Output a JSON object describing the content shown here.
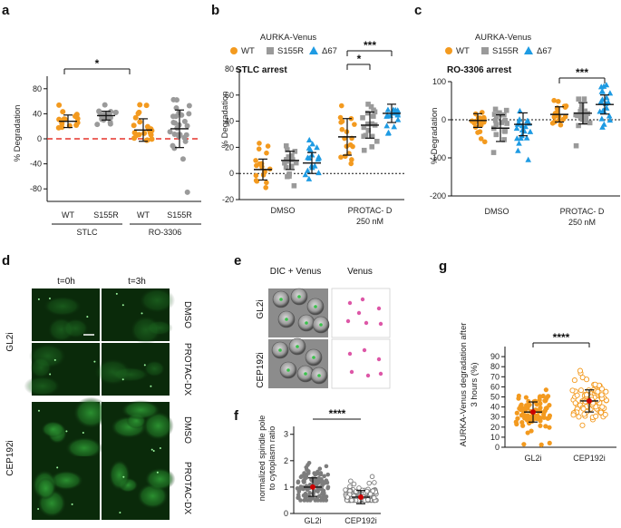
{
  "colors": {
    "wt": "#f39a1f",
    "s155r": "#9a9a9a",
    "d67": "#1e9be3",
    "gl2i_dot": "#f39a1f",
    "cep192i_ring": "#f39a1f",
    "grey_dot": "#7d7d7d",
    "red_dash": "#e5332a",
    "mean_red": "#cc0000",
    "micro_bg": "#0a2a0a",
    "micro_green": "#39c24a",
    "venus_pink": "#d21f8a"
  },
  "panels": {
    "a": {
      "label": "a",
      "ylabel": "% Degradation",
      "sig": "*",
      "groups": [
        "STLC",
        "RO-3306"
      ],
      "xticks": [
        "WT",
        "S155R",
        "WT",
        "S155R"
      ]
    },
    "b": {
      "label": "b",
      "legend_title": "AURKA-Venus",
      "legend": [
        "WT",
        "S155R",
        "Δ67"
      ],
      "title": "STLC arrest",
      "ylabel": "% Degradation",
      "sig1": "***",
      "sig2": "*",
      "xcat1": "DMSO",
      "xcat2_line1": "PROTAC- D",
      "xcat2_line2": "250 nM"
    },
    "c": {
      "label": "c",
      "legend_title": "AURKA-Venus",
      "legend": [
        "WT",
        "S155R",
        "Δ67"
      ],
      "title": "RO-3306 arrest",
      "ylabel": "% Degradation",
      "sig": "***",
      "xcat1": "DMSO",
      "xcat2_line1": "PROTAC- D",
      "xcat2_line2": "250 nM"
    },
    "d": {
      "label": "d",
      "col_labels": [
        "t=0h",
        "t=3h"
      ],
      "row_groups": [
        "GL2i",
        "CEP192i"
      ],
      "row_labels": [
        "DMSO",
        "PROTAC-DX",
        "DMSO",
        "PROTAC-DX"
      ]
    },
    "e": {
      "label": "e",
      "col_labels": [
        "DIC + Venus",
        "Venus"
      ],
      "row_labels": [
        "GL2i",
        "CEP192i"
      ]
    },
    "f": {
      "label": "f",
      "ylabel_line1": "normalized spindle pole",
      "ylabel_line2": "to cytoplasm ratio",
      "sig": "****",
      "xticks": [
        "GL2i",
        "CEP192i"
      ]
    },
    "g": {
      "label": "g",
      "ylabel_line1": "AURKA-Venus degradation after",
      "ylabel_line2": "3 hours (%)",
      "sig": "****",
      "xticks": [
        "GL2i",
        "CEP192i"
      ]
    }
  },
  "chart_data": [
    {
      "id": "a",
      "type": "scatter",
      "ylabel": "% Degradation",
      "ylim": [
        -100,
        100
      ],
      "yticks": [
        -80,
        -40,
        0,
        40,
        80
      ],
      "categories": [
        "STLC WT",
        "STLC S155R",
        "RO-3306 WT",
        "RO-3306 S155R"
      ],
      "series": [
        {
          "name": "STLC WT",
          "mean": 28,
          "sd": 10,
          "n": 14
        },
        {
          "name": "STLC S155R",
          "mean": 37,
          "sd": 7,
          "n": 20
        },
        {
          "name": "RO-3306 WT",
          "mean": 14,
          "sd": 18,
          "n": 22
        },
        {
          "name": "RO-3306 S155R",
          "mean": 16,
          "sd": 30,
          "n": 28
        }
      ],
      "reference_line": 0,
      "significance": [
        {
          "between": [
            "STLC WT",
            "STLC S155R"
          ],
          "label": "*"
        }
      ]
    },
    {
      "id": "b",
      "type": "scatter",
      "ylabel": "% Degradation",
      "ylim": [
        -20,
        80
      ],
      "yticks": [
        -20,
        0,
        20,
        40,
        60,
        80
      ],
      "title": "STLC arrest",
      "categories": [
        "DMSO",
        "PROTAC- D 250 nM"
      ],
      "series": [
        {
          "name": "WT",
          "values_mean": [
            3,
            28
          ],
          "values_sd": [
            8,
            14
          ]
        },
        {
          "name": "S155R",
          "values_mean": [
            10,
            37
          ],
          "values_sd": [
            7,
            10
          ]
        },
        {
          "name": "Δ67",
          "values_mean": [
            8,
            46
          ],
          "values_sd": [
            8,
            7
          ]
        }
      ],
      "reference_line": 0
    },
    {
      "id": "c",
      "type": "scatter",
      "ylabel": "% Degradation",
      "ylim": [
        -200,
        100
      ],
      "yticks": [
        -200,
        -100,
        0,
        100
      ],
      "title": "RO-3306 arrest",
      "categories": [
        "DMSO",
        "PROTAC- D 250 nM"
      ],
      "series": [
        {
          "name": "WT",
          "values_mean": [
            -2,
            14
          ],
          "values_sd": [
            18,
            20
          ]
        },
        {
          "name": "S155R",
          "values_mean": [
            -22,
            17
          ],
          "values_sd": [
            35,
            28
          ]
        },
        {
          "name": "Δ67",
          "values_mean": [
            -12,
            40
          ],
          "values_sd": [
            30,
            25
          ]
        }
      ],
      "reference_line": 0
    },
    {
      "id": "f",
      "type": "scatter",
      "ylim": [
        0,
        3.3
      ],
      "yticks": [
        0,
        1,
        2,
        3
      ],
      "categories": [
        "GL2i",
        "CEP192i"
      ],
      "series": [
        {
          "name": "GL2i",
          "mean": 1.0,
          "sd": 0.35,
          "n": 120
        },
        {
          "name": "CEP192i",
          "mean": 0.62,
          "sd": 0.25,
          "n": 120
        }
      ]
    },
    {
      "id": "g",
      "type": "scatter",
      "ylim": [
        0,
        100
      ],
      "yticks": [
        0,
        10,
        20,
        30,
        40,
        50,
        60,
        70,
        80,
        90
      ],
      "categories": [
        "GL2i",
        "CEP192i"
      ],
      "series": [
        {
          "name": "GL2i",
          "mean": 35,
          "sd": 10,
          "n": 90
        },
        {
          "name": "CEP192i",
          "mean": 46,
          "sd": 11,
          "n": 90
        }
      ]
    }
  ]
}
